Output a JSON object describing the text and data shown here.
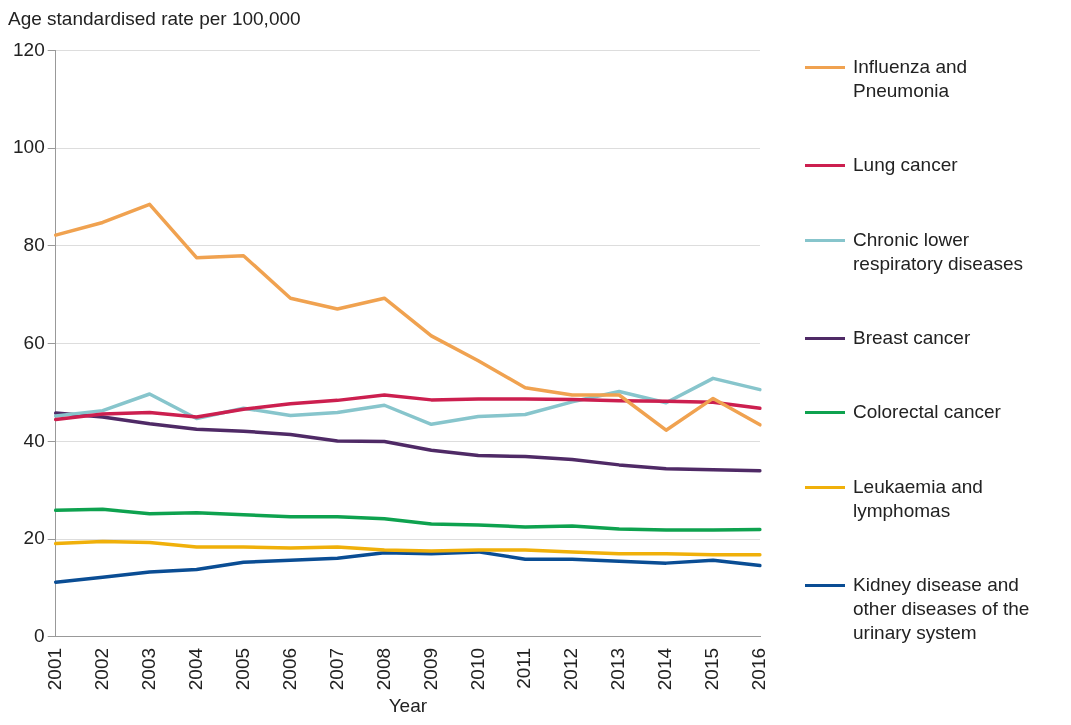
{
  "chart_data": {
    "type": "line",
    "ylabel": "Age standardised rate per 100,000",
    "xlabel": "Year",
    "categories": [
      "2001",
      "2002",
      "2003",
      "2004",
      "2005",
      "2006",
      "2007",
      "2008",
      "2009",
      "2010",
      "2011",
      "2012",
      "2013",
      "2014",
      "2015",
      "2016"
    ],
    "ylim": [
      0,
      120
    ],
    "yticks": [
      0,
      20,
      40,
      60,
      80,
      100,
      120
    ],
    "grid": "y",
    "legend": "right",
    "marker": "none",
    "line_style": "solid",
    "series": [
      {
        "name": "Influenza and Pneumonia",
        "color": "#f0a250",
        "values": [
          82.2,
          84.8,
          88.5,
          77.6,
          78.0,
          69.3,
          67.1,
          69.3,
          61.6,
          56.5,
          51.0,
          49.5,
          49.5,
          42.3,
          48.8,
          43.4
        ]
      },
      {
        "name": "Lung cancer",
        "color": "#cc1f4f",
        "values": [
          44.5,
          45.6,
          45.9,
          45.0,
          46.6,
          47.7,
          48.4,
          49.5,
          48.5,
          48.7,
          48.7,
          48.6,
          48.3,
          48.2,
          48.0,
          46.8
        ]
      },
      {
        "name": "Chronic lower respiratory diseases",
        "color": "#87c5cc",
        "values": [
          45.2,
          46.3,
          49.7,
          44.7,
          46.8,
          45.3,
          45.9,
          47.4,
          43.5,
          45.1,
          45.5,
          48.1,
          50.2,
          47.9,
          52.9,
          50.6
        ]
      },
      {
        "name": "Breast cancer",
        "color": "#4f2a66",
        "values": [
          45.8,
          45.0,
          43.6,
          42.5,
          42.1,
          41.4,
          40.1,
          40.0,
          38.2,
          37.1,
          36.9,
          36.3,
          35.2,
          34.4,
          34.2,
          34.0
        ]
      },
      {
        "name": "Colorectal cancer",
        "color": "#0ea24f",
        "values": [
          25.9,
          26.1,
          25.2,
          25.4,
          25.0,
          24.6,
          24.6,
          24.2,
          23.1,
          22.9,
          22.5,
          22.7,
          22.1,
          21.9,
          21.9,
          22.0
        ]
      },
      {
        "name": "Leukaemia and lymphomas",
        "color": "#f0b00a",
        "values": [
          19.1,
          19.5,
          19.3,
          18.4,
          18.4,
          18.2,
          18.4,
          17.8,
          17.6,
          17.8,
          17.8,
          17.4,
          17.0,
          17.0,
          16.8,
          16.8
        ]
      },
      {
        "name": "Kidney disease and other diseases of the urinary system",
        "color": "#0a4d94",
        "values": [
          11.2,
          12.2,
          13.3,
          13.8,
          15.3,
          15.7,
          16.1,
          17.2,
          17.0,
          17.4,
          15.9,
          15.9,
          15.5,
          15.1,
          15.7,
          14.6
        ]
      }
    ]
  }
}
